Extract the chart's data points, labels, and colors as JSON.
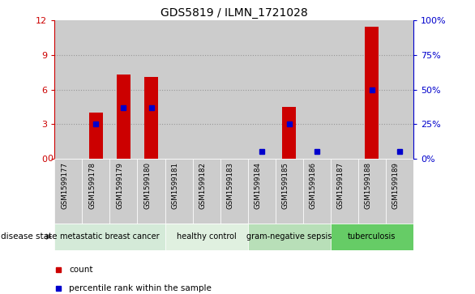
{
  "title": "GDS5819 / ILMN_1721028",
  "samples": [
    "GSM1599177",
    "GSM1599178",
    "GSM1599179",
    "GSM1599180",
    "GSM1599181",
    "GSM1599182",
    "GSM1599183",
    "GSM1599184",
    "GSM1599185",
    "GSM1599186",
    "GSM1599187",
    "GSM1599188",
    "GSM1599189"
  ],
  "counts": [
    0,
    4.0,
    7.3,
    7.1,
    0,
    0,
    0,
    0,
    4.5,
    0,
    0,
    11.5,
    0
  ],
  "percentiles": [
    null,
    25,
    37,
    37,
    null,
    null,
    null,
    5,
    25,
    5,
    null,
    50,
    5
  ],
  "ylim_left": [
    0,
    12
  ],
  "ylim_right": [
    0,
    100
  ],
  "yticks_left": [
    0,
    3,
    6,
    9,
    12
  ],
  "ytick_labels_right": [
    "0%",
    "25%",
    "50%",
    "75%",
    "100%"
  ],
  "yticks_right": [
    0,
    25,
    50,
    75,
    100
  ],
  "disease_groups": [
    {
      "label": "metastatic breast cancer",
      "indices": [
        0,
        1,
        2,
        3
      ],
      "color": "#d4ead8"
    },
    {
      "label": "healthy control",
      "indices": [
        4,
        5,
        6
      ],
      "color": "#e0f0e0"
    },
    {
      "label": "gram-negative sepsis",
      "indices": [
        7,
        8,
        9
      ],
      "color": "#b8dfb8"
    },
    {
      "label": "tuberculosis",
      "indices": [
        10,
        11,
        12
      ],
      "color": "#66cc66"
    }
  ],
  "bar_color": "#cc0000",
  "dot_color": "#0000cc",
  "bar_width": 0.5,
  "dot_size": 5,
  "grid_yticks": [
    3,
    6,
    9
  ],
  "grid_color": "#000000",
  "grid_alpha": 0.25,
  "left_axis_color": "#cc0000",
  "right_axis_color": "#0000cc",
  "col_bg_color": "#cccccc",
  "plot_bg_color": "#ffffff"
}
